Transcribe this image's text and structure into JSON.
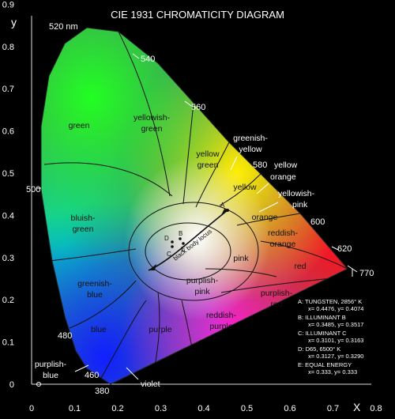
{
  "title": "CIE 1931 CHROMATICITY DIAGRAM",
  "axes": {
    "x_label": "X",
    "y_label": "y",
    "x_ticks": [
      "0",
      "0.1",
      "0.2",
      "0.3",
      "0.4",
      "0.5",
      "0.6",
      "0.7",
      "0.8"
    ],
    "y_ticks": [
      "0",
      "0.1",
      "0.2",
      "0.3",
      "0.4",
      "0.5",
      "0.6",
      "0.7",
      "0.8",
      "0.9"
    ]
  },
  "wavelength_labels": [
    "520 nm",
    "540",
    "560",
    "580",
    "600",
    "620",
    "770",
    "500",
    "480",
    "460",
    "380"
  ],
  "color_regions": {
    "green": "green",
    "yellowish_green": [
      "yellowish-",
      "green"
    ],
    "yellow_green": [
      "yellow",
      "green"
    ],
    "greenish_yellow": [
      "greenish-",
      "yellow"
    ],
    "yellow": "yellow",
    "yellow_orange": [
      "yellow",
      "orange"
    ],
    "yellowish_pink": [
      "yellowish-",
      "pink"
    ],
    "orange": "orange",
    "reddish_orange": [
      "reddish-",
      "orange"
    ],
    "bluish_green": [
      "bluish-",
      "green"
    ],
    "pink": "pink",
    "red": "red",
    "greenish_blue": [
      "greenish-",
      "blue"
    ],
    "purplish_pink": [
      "purplish-",
      "pink"
    ],
    "purplish_red": [
      "purplish-",
      "red"
    ],
    "blue": "blue",
    "purple": "purple",
    "reddish_purple": [
      "reddish-",
      "purple"
    ],
    "purplish_blue": [
      "purplish-",
      "blue"
    ],
    "violet": "violet"
  },
  "locus_label": "black body locus",
  "point_labels": [
    "A",
    "B",
    "C",
    "D",
    "E"
  ],
  "legend": [
    {
      "title": "A:  TUNGSTEN, 2856° K",
      "coords": "x= 0.4476, y= 0.4074"
    },
    {
      "title": "B:  ILLUMINANT B",
      "coords": "x= 0.3485, y= 0.3517"
    },
    {
      "title": "C:  ILLUMINANT C",
      "coords": "x= 0.3101, y= 0.3163"
    },
    {
      "title": "D:  D65, 6500° K",
      "coords": "x= 0.3127, y= 0.3290"
    },
    {
      "title": "E:  EQUAL ENERGY",
      "coords": "x= 0.333, y= 0.333"
    }
  ]
}
